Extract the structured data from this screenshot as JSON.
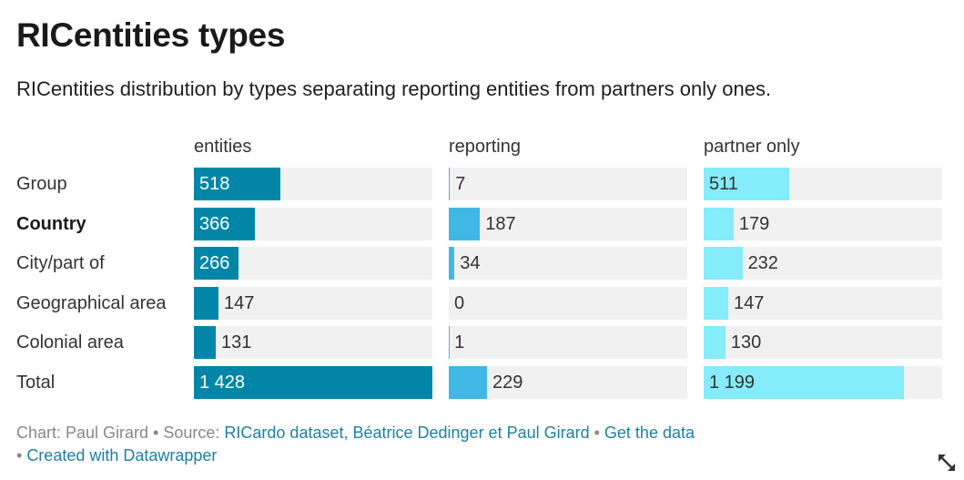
{
  "header": {
    "title": "RICentities types",
    "subtitle": "RICentities distribution by types separating reporting entities from partners only ones."
  },
  "colors": {
    "entities": "#0286a8",
    "reporting": "#40b7e5",
    "partner_only": "#84ecfb",
    "track": "#f1f1f1"
  },
  "chart_data": {
    "type": "bar",
    "categories": [
      "Group",
      "Country",
      "City/part of",
      "Geographical area",
      "Colonial area",
      "Total"
    ],
    "highlighted_category": "Country",
    "series": [
      {
        "name": "entities",
        "values": [
          518,
          366,
          266,
          147,
          131,
          1428
        ],
        "labels": [
          "518",
          "366",
          "266",
          "147",
          "131",
          "1 428"
        ]
      },
      {
        "name": "reporting",
        "values": [
          7,
          187,
          34,
          0,
          1,
          229
        ],
        "labels": [
          "7",
          "187",
          "34",
          "0",
          "1",
          "229"
        ]
      },
      {
        "name": "partner only",
        "values": [
          511,
          179,
          232,
          147,
          130,
          1199
        ],
        "labels": [
          "511",
          "179",
          "232",
          "147",
          "130",
          "1 199"
        ]
      }
    ]
  },
  "footer": {
    "chart_prefix": "Chart: Paul Girard • Source: ",
    "source_link": "RICardo dataset, Béatrice Dedinger et Paul Girard",
    "sep1": " • ",
    "get_data": "Get the data",
    "sep2": "• ",
    "created_with": "Created with Datawrapper"
  },
  "icons": {
    "expand": "expand-arrows-icon"
  }
}
